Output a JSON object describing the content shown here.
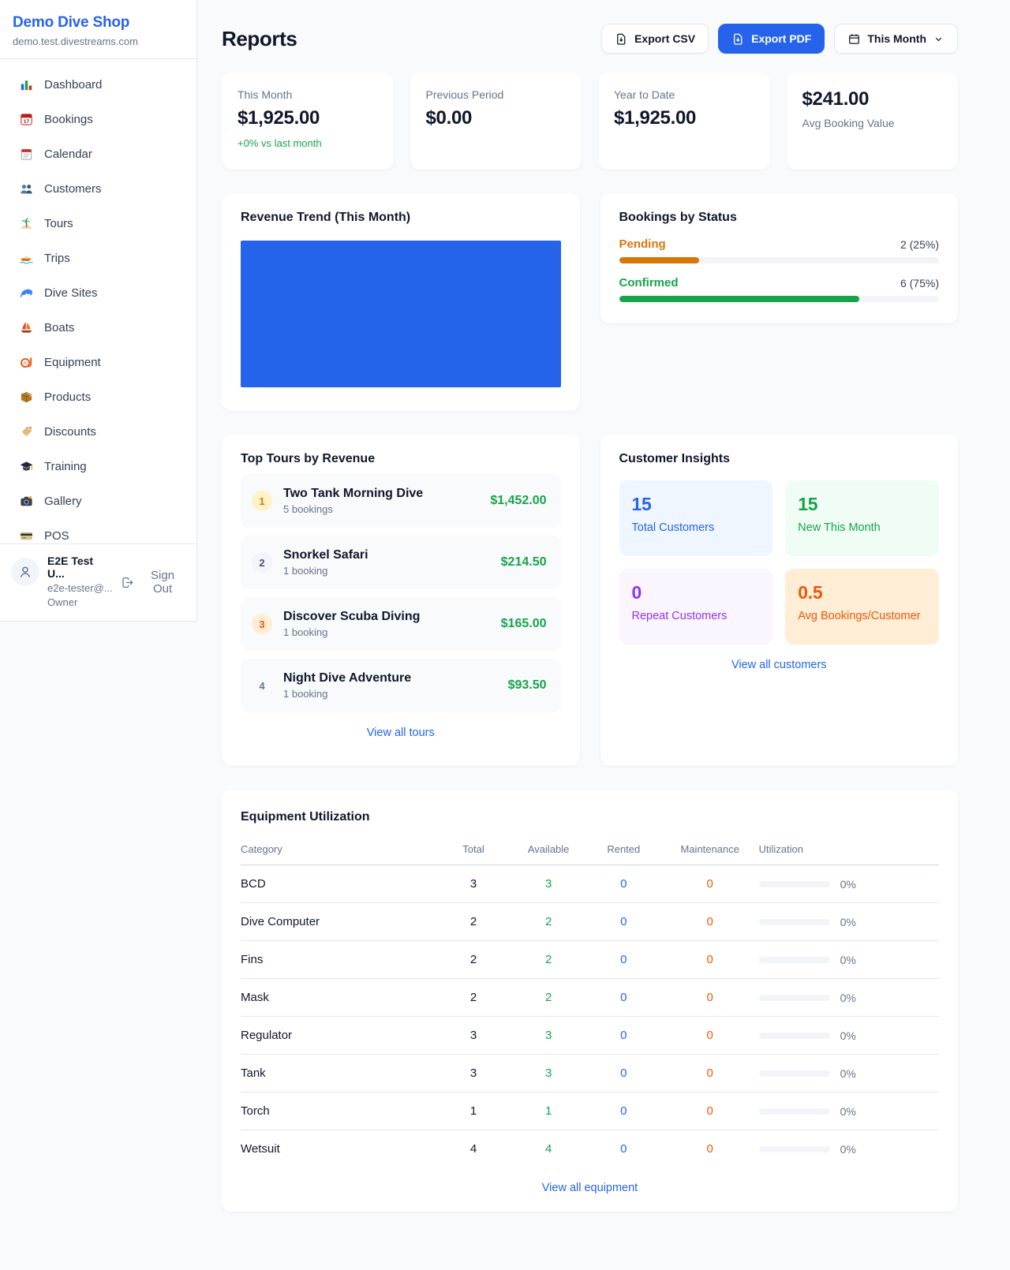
{
  "sidebar": {
    "shop_name": "Demo Dive Shop",
    "shop_domain": "demo.test.divestreams.com",
    "items": [
      {
        "icon": "dashboard-chart",
        "label": "Dashboard"
      },
      {
        "icon": "bookings-calendar",
        "label": "Bookings"
      },
      {
        "icon": "calendar-page",
        "label": "Calendar"
      },
      {
        "icon": "customers-people",
        "label": "Customers"
      },
      {
        "icon": "tours-island",
        "label": "Tours"
      },
      {
        "icon": "trips-boat",
        "label": "Trips"
      },
      {
        "icon": "dive-sites-wave",
        "label": "Dive Sites"
      },
      {
        "icon": "boats-sailboat",
        "label": "Boats"
      },
      {
        "icon": "equipment-mask",
        "label": "Equipment"
      },
      {
        "icon": "products-box",
        "label": "Products"
      },
      {
        "icon": "discounts-tag",
        "label": "Discounts"
      },
      {
        "icon": "training-cap",
        "label": "Training"
      },
      {
        "icon": "gallery-camera",
        "label": "Gallery"
      },
      {
        "icon": "pos-card",
        "label": "POS"
      }
    ],
    "user": {
      "name": "E2E Test U...",
      "email": "e2e-tester@...",
      "role": "Owner",
      "sign_out_label": "Sign Out"
    }
  },
  "header": {
    "title": "Reports",
    "export_csv_label": "Export CSV",
    "export_pdf_label": "Export PDF",
    "period_selector_label": "This Month"
  },
  "stats": {
    "this_month": {
      "label": "This Month",
      "value": "$1,925.00",
      "delta": "+0% vs last month"
    },
    "previous_period": {
      "label": "Previous Period",
      "value": "$0.00"
    },
    "year_to_date": {
      "label": "Year to Date",
      "value": "$1,925.00"
    },
    "avg_booking": {
      "value": "$241.00",
      "label": "Avg Booking Value"
    }
  },
  "revenue_trend": {
    "title": "Revenue Trend (This Month)",
    "bar_color": "#2563eb"
  },
  "bookings_by_status": {
    "title": "Bookings by Status",
    "rows": [
      {
        "label": "Pending",
        "count_text": "2 (25%)",
        "percent": 25,
        "color": "#d97706"
      },
      {
        "label": "Confirmed",
        "count_text": "6 (75%)",
        "percent": 75,
        "color": "#16a34a"
      }
    ]
  },
  "top_tours": {
    "title": "Top Tours by Revenue",
    "rows": [
      {
        "rank": "1",
        "name": "Two Tank Morning Dive",
        "bookings": "5 bookings",
        "amount": "$1,452.00"
      },
      {
        "rank": "2",
        "name": "Snorkel Safari",
        "bookings": "1 booking",
        "amount": "$214.50"
      },
      {
        "rank": "3",
        "name": "Discover Scuba Diving",
        "bookings": "1 booking",
        "amount": "$165.00"
      },
      {
        "rank": "4",
        "name": "Night Dive Adventure",
        "bookings": "1 booking",
        "amount": "$93.50"
      }
    ],
    "view_all_label": "View all tours"
  },
  "customer_insights": {
    "title": "Customer Insights",
    "cards": [
      {
        "value": "15",
        "label": "Total Customers",
        "color": "#2563eb"
      },
      {
        "value": "15",
        "label": "New This Month",
        "color": "#16a34a"
      },
      {
        "value": "0",
        "label": "Repeat Customers",
        "color": "#9333ea"
      },
      {
        "value": "0.5",
        "label": "Avg Bookings/Customer",
        "color": "#ea580c"
      }
    ],
    "view_all_label": "View all customers"
  },
  "equipment": {
    "title": "Equipment Utilization",
    "columns": [
      "Category",
      "Total",
      "Available",
      "Rented",
      "Maintenance",
      "Utilization"
    ],
    "rows": [
      {
        "category": "BCD",
        "total": "3",
        "available": "3",
        "rented": "0",
        "maintenance": "0",
        "utilization": "0%"
      },
      {
        "category": "Dive Computer",
        "total": "2",
        "available": "2",
        "rented": "0",
        "maintenance": "0",
        "utilization": "0%"
      },
      {
        "category": "Fins",
        "total": "2",
        "available": "2",
        "rented": "0",
        "maintenance": "0",
        "utilization": "0%"
      },
      {
        "category": "Mask",
        "total": "2",
        "available": "2",
        "rented": "0",
        "maintenance": "0",
        "utilization": "0%"
      },
      {
        "category": "Regulator",
        "total": "3",
        "available": "3",
        "rented": "0",
        "maintenance": "0",
        "utilization": "0%"
      },
      {
        "category": "Tank",
        "total": "3",
        "available": "3",
        "rented": "0",
        "maintenance": "0",
        "utilization": "0%"
      },
      {
        "category": "Torch",
        "total": "1",
        "available": "1",
        "rented": "0",
        "maintenance": "0",
        "utilization": "0%"
      },
      {
        "category": "Wetsuit",
        "total": "4",
        "available": "4",
        "rented": "0",
        "maintenance": "0",
        "utilization": "0%"
      }
    ],
    "view_all_label": "View all equipment"
  }
}
